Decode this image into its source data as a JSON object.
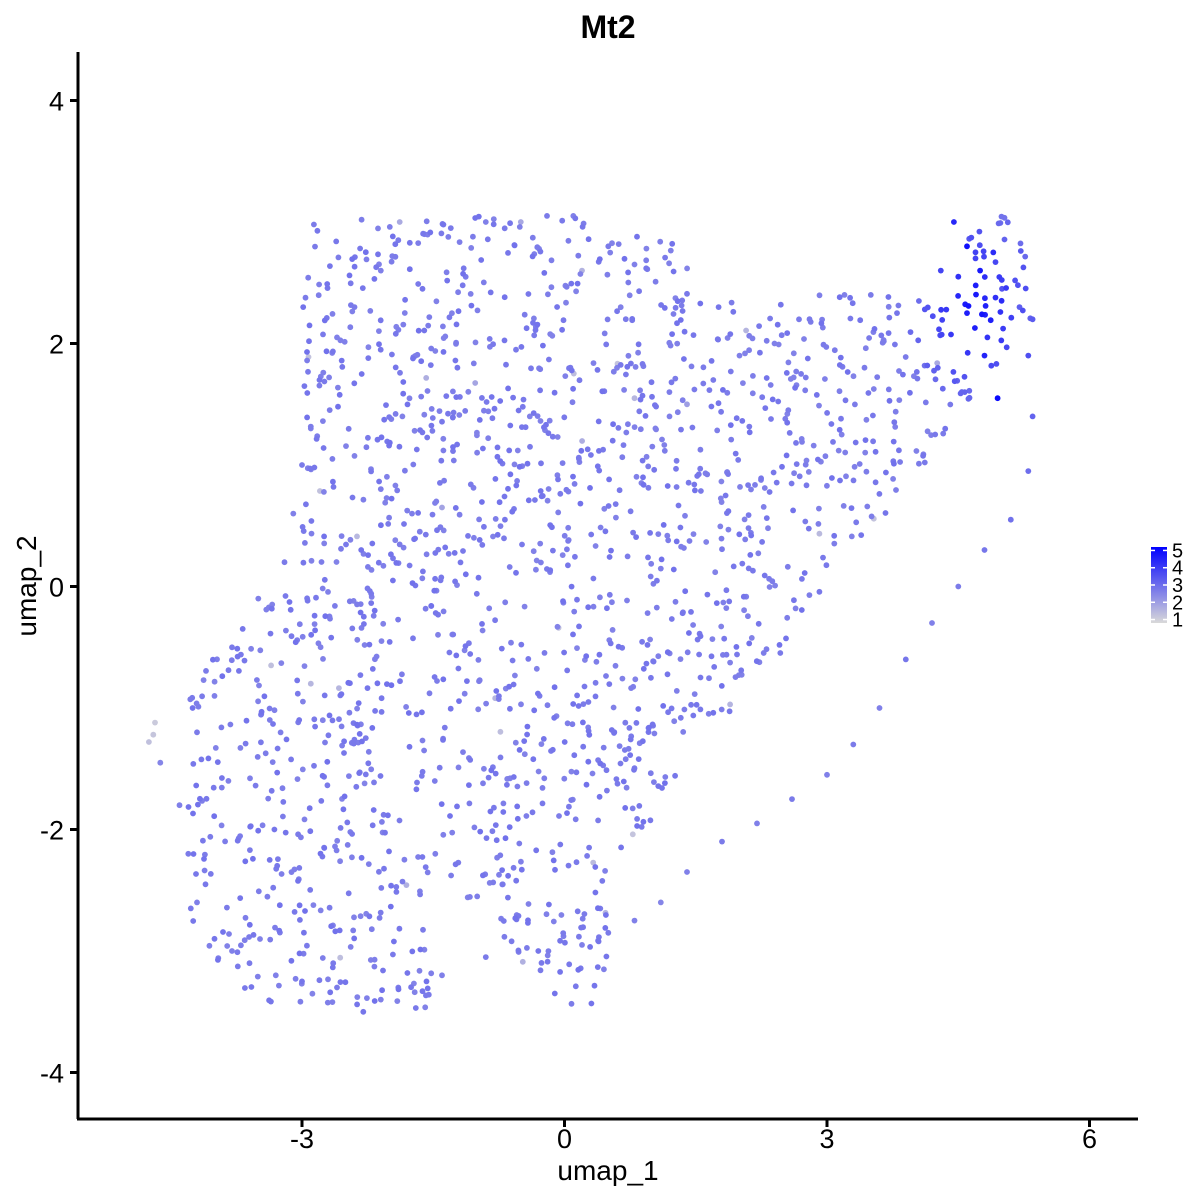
{
  "chart_data": {
    "type": "scatter",
    "title": "Mt2",
    "xlabel": "umap_1",
    "ylabel": "umap_2",
    "xlim": [
      -5.6,
      6.6
    ],
    "ylim": [
      -4.35,
      4.4
    ],
    "x_ticks": [
      -3,
      0,
      3,
      6
    ],
    "y_ticks": [
      -4,
      -2,
      0,
      2,
      4
    ],
    "x_tick_labels": [
      "-3",
      "0",
      "3",
      "6"
    ],
    "y_tick_labels": [
      "-4",
      "-2",
      "0",
      "2",
      "4"
    ],
    "grid": false,
    "legend": {
      "placement": "right",
      "type": "colorbar",
      "labels": [
        "5",
        "4",
        "3",
        "2",
        "1"
      ],
      "values": [
        5,
        4,
        3,
        2,
        1
      ],
      "low_color": "#d9d9d9",
      "high_color": "#0000ff",
      "min": 0.8,
      "max": 5.2
    },
    "point_color_scale": [
      "#d9d9d9",
      "#0000ff"
    ],
    "point_count_estimate": 1900,
    "points": [
      [
        -4.75,
        -1.28,
        1.3
      ],
      [
        -4.7,
        -1.22,
        1.2
      ],
      [
        -4.68,
        -1.12,
        1.1
      ],
      [
        -4.62,
        -1.45,
        2.5
      ],
      [
        -4.4,
        -1.8,
        2.6
      ],
      [
        -4.3,
        -2.2,
        2.7
      ],
      [
        -4.2,
        -2.6,
        2.6
      ],
      [
        -4.0,
        -2.9,
        2.8
      ],
      [
        -3.8,
        -3.0,
        2.6
      ],
      [
        -3.6,
        -3.1,
        2.7
      ],
      [
        -3.3,
        -3.2,
        2.6
      ],
      [
        -3.0,
        -3.25,
        2.8
      ],
      [
        -2.6,
        -3.3,
        2.7
      ],
      [
        -2.3,
        -3.5,
        2.8
      ],
      [
        -2.1,
        -3.4,
        2.6
      ],
      [
        -1.9,
        -3.3,
        2.7
      ],
      [
        -1.4,
        -3.2,
        2.6
      ],
      [
        -0.9,
        -3.05,
        2.7
      ],
      [
        -0.3,
        -3.0,
        2.8
      ],
      [
        0.2,
        -2.95,
        2.6
      ],
      [
        0.5,
        -2.85,
        2.7
      ],
      [
        0.8,
        -2.75,
        2.6
      ],
      [
        1.1,
        -2.6,
        2.5
      ],
      [
        1.4,
        -2.35,
        2.6
      ],
      [
        1.8,
        -2.1,
        2.7
      ],
      [
        2.2,
        -1.95,
        2.6
      ],
      [
        2.6,
        -1.75,
        2.7
      ],
      [
        3.0,
        -1.55,
        2.6
      ],
      [
        3.3,
        -1.3,
        2.7
      ],
      [
        3.6,
        -1.0,
        2.6
      ],
      [
        3.9,
        -0.6,
        2.8
      ],
      [
        4.2,
        -0.3,
        2.6
      ],
      [
        4.5,
        0.0,
        2.7
      ],
      [
        4.8,
        0.3,
        2.8
      ],
      [
        5.1,
        0.55,
        2.9
      ],
      [
        5.3,
        0.95,
        3.0
      ],
      [
        5.35,
        1.4,
        3.2
      ],
      [
        5.3,
        1.9,
        3.6
      ],
      [
        5.2,
        2.3,
        3.3
      ],
      [
        5.0,
        2.45,
        3.5
      ],
      [
        4.75,
        2.6,
        4.7
      ],
      [
        4.6,
        2.8,
        4.9
      ],
      [
        4.45,
        3.0,
        4.4
      ],
      [
        4.3,
        2.6,
        3.8
      ],
      [
        4.05,
        2.35,
        3.0
      ],
      [
        3.8,
        2.25,
        2.8
      ],
      [
        3.5,
        2.4,
        2.7
      ],
      [
        3.2,
        2.4,
        2.6
      ],
      [
        2.8,
        2.2,
        2.7
      ],
      [
        2.4,
        2.0,
        2.6
      ],
      [
        2.0,
        1.9,
        2.6
      ],
      [
        1.7,
        1.7,
        2.7
      ],
      [
        1.4,
        1.5,
        2.0
      ],
      [
        1.2,
        1.4,
        2.6
      ],
      [
        0.8,
        1.55,
        1.5
      ],
      [
        0.6,
        1.8,
        2.6
      ],
      [
        0.7,
        2.2,
        2.7
      ],
      [
        0.8,
        2.65,
        2.6
      ],
      [
        0.5,
        2.8,
        2.7
      ],
      [
        0.1,
        3.05,
        2.6
      ],
      [
        -0.2,
        3.05,
        2.7
      ],
      [
        -0.5,
        3.0,
        1.8
      ],
      [
        -0.9,
        3.0,
        2.6
      ],
      [
        -1.3,
        2.95,
        2.7
      ],
      [
        -1.6,
        2.9,
        2.6
      ],
      [
        -1.9,
        2.85,
        2.7
      ],
      [
        -2.1,
        2.6,
        2.6
      ],
      [
        -2.4,
        2.3,
        2.7
      ],
      [
        -2.6,
        2.05,
        2.6
      ],
      [
        -2.8,
        1.7,
        2.8
      ],
      [
        -2.9,
        1.3,
        2.6
      ],
      [
        -3.0,
        1.0,
        2.7
      ],
      [
        -3.1,
        0.6,
        2.6
      ],
      [
        -3.2,
        0.2,
        2.7
      ],
      [
        -3.5,
        -0.1,
        2.6
      ],
      [
        -3.8,
        -0.5,
        2.7
      ],
      [
        -4.0,
        -0.9,
        2.6
      ],
      [
        -4.2,
        -1.2,
        2.7
      ],
      [
        -2.9,
        -0.8,
        1.5
      ],
      [
        0.2,
        2.6,
        1.6
      ],
      [
        -1.4,
        0.65,
        1.9
      ],
      [
        4.95,
        1.55,
        5.0
      ],
      [
        4.6,
        2.25,
        4.6
      ],
      [
        4.8,
        1.9,
        4.5
      ],
      [
        4.5,
        2.55,
        4.2
      ],
      [
        4.9,
        2.75,
        4.3
      ]
    ]
  }
}
